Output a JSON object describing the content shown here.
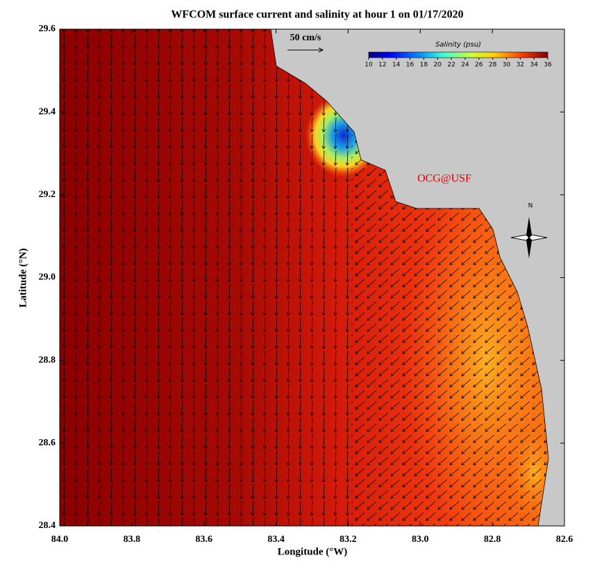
{
  "chart_data": {
    "type": "map",
    "title": "WFCOM surface current and salinity at hour 1 on 01/17/2020",
    "x_label": "Longitude (°W)",
    "y_label": "Latitude (°N)",
    "xlim": [
      84.0,
      82.6
    ],
    "xticks": [
      {
        "value": 84.0,
        "label": "84.0"
      },
      83.8,
      83.6,
      83.4,
      83.2,
      {
        "value": 83.0,
        "label": "83.0"
      },
      82.8,
      82.6
    ],
    "ylim": [
      28.4,
      29.6
    ],
    "yticks": [
      28.4,
      28.6,
      28.8,
      {
        "value": 29.0,
        "label": "29.0"
      },
      29.2,
      29.4,
      29.6
    ],
    "colorbar": {
      "label": "Salinity (psu)",
      "lim": [
        10,
        36
      ],
      "ticks": [
        10,
        12,
        14,
        16,
        18,
        20,
        22,
        24,
        26,
        28,
        30,
        32,
        34,
        36
      ]
    },
    "scale_label": "50 cm/s",
    "annotation": "OCG@USF",
    "compass_label": "N"
  }
}
